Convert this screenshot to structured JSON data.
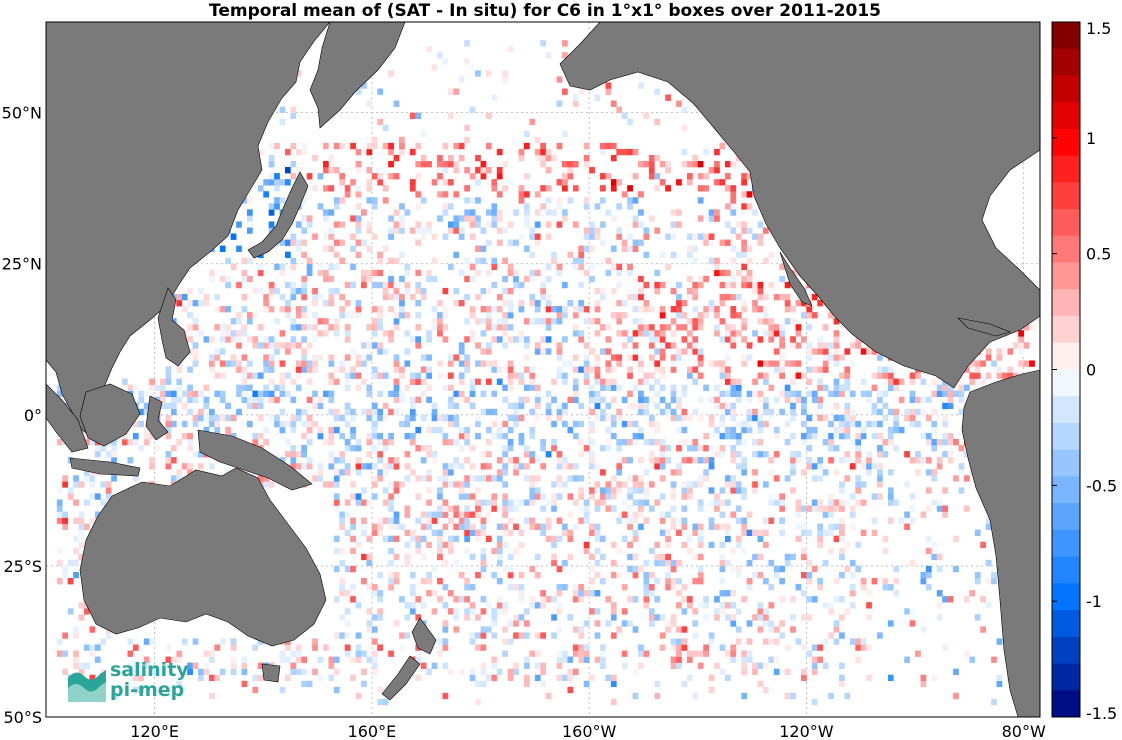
{
  "title": "Temporal mean of (SAT - In situ) for C6 in 1°x1° boxes over 2011-2015",
  "map": {
    "lon_range": [
      100,
      283
    ],
    "lat_range": [
      -50,
      65
    ],
    "lat_ticks": [
      {
        "value": 50,
        "label": "50°N"
      },
      {
        "value": 25,
        "label": "25°N"
      },
      {
        "value": 0,
        "label": "0°"
      },
      {
        "value": -25,
        "label": "25°S"
      },
      {
        "value": -50,
        "label": "50°S"
      }
    ],
    "lon_ticks": [
      {
        "value": 120,
        "label": "120°E"
      },
      {
        "value": 160,
        "label": "160°E"
      },
      {
        "value": 200,
        "label": "160°W"
      },
      {
        "value": 240,
        "label": "120°W"
      },
      {
        "value": 280,
        "label": "80°W"
      }
    ],
    "land_color": "#7a7a7a",
    "ocean_color": "#ffffff",
    "grid_color": "#b0b0b0"
  },
  "colorbar": {
    "range": [
      -1.5,
      1.5
    ],
    "ticks": [
      {
        "value": 1.5,
        "label": "1.5"
      },
      {
        "value": 1,
        "label": "1"
      },
      {
        "value": 0.5,
        "label": "0.5"
      },
      {
        "value": 0,
        "label": "0"
      },
      {
        "value": -0.5,
        "label": "-0.5"
      },
      {
        "value": -1,
        "label": "-1"
      },
      {
        "value": -1.5,
        "label": "-1.5"
      }
    ],
    "steps": 26
  },
  "logo": {
    "line1": "salinity",
    "line2": "pi-mep"
  }
}
